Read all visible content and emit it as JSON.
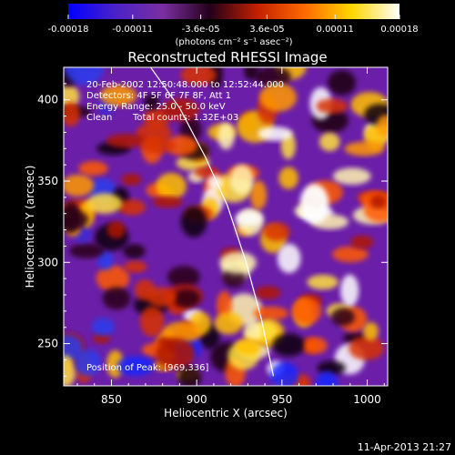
{
  "chart_data": {
    "type": "heatmap",
    "title": "Reconstructed RHESSI Image",
    "xlabel": "Heliocentric X (arcsec)",
    "ylabel": "Heliocentric Y (arcsec)",
    "xlim": [
      822,
      1012
    ],
    "ylim": [
      224,
      420
    ],
    "x_ticks": [
      850,
      900,
      950,
      1000
    ],
    "y_ticks": [
      250,
      300,
      350,
      400
    ],
    "colorbar": {
      "range": [
        -0.00018,
        0.00018
      ],
      "tick_labels": [
        "-0.00018",
        "-0.00011",
        "-3.6e-05",
        "3.6e-05",
        "0.00011",
        "0.00018"
      ],
      "unit_label": "(photons cm⁻² s⁻¹ asec⁻²)",
      "colormap": [
        "#0000ff",
        "#4b22c8",
        "#7b2ea0",
        "#230018",
        "#c42000",
        "#ff6a00",
        "#ffd700",
        "#ffffff"
      ]
    },
    "annotations": {
      "time_range": "20-Feb-2002 12:50:48.000 to 12:52:44.000",
      "detectors": "Detectors: 4F 5F 6F 7F 8F, Att 1",
      "energy": "Energy Range: 25.0 - 50.0 keV",
      "clean": "Clean",
      "total_counts": "Total counts: 1.32E+03",
      "peak": "Position of Peak: [969,336]"
    },
    "peak_position": [
      969,
      336
    ],
    "limb_curve": [
      [
        873,
        420
      ],
      [
        890,
        395
      ],
      [
        905,
        365
      ],
      [
        918,
        335
      ],
      [
        929,
        300
      ],
      [
        938,
        265
      ],
      [
        945,
        230
      ]
    ],
    "colors": {
      "background": "#6b1fa8",
      "limb": "#ffffff",
      "axes": "#ffffff"
    }
  },
  "footer": {
    "timestamp": "11-Apr-2013 21:27"
  }
}
